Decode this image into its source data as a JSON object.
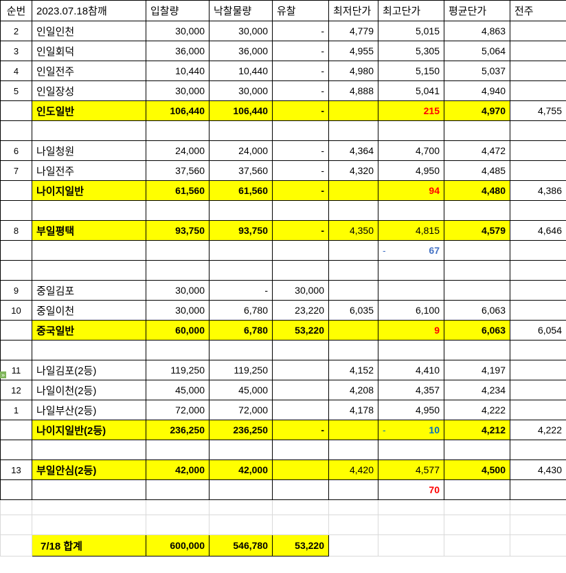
{
  "headers": [
    "순번",
    "2023.07.18참깨",
    "입찰량",
    "낙찰물량",
    "유찰",
    "최저단가",
    "최고단가",
    "평균단가",
    "전주"
  ],
  "colors": {
    "highlight": "#ffff00",
    "red": "#ff0000",
    "blue_dark": "#4472c4",
    "blue": "#0070c0"
  },
  "rows": [
    {
      "kind": "normal",
      "cells": [
        "2",
        "인일인천",
        "30,000",
        "30,000",
        "-",
        "4,779",
        "5,015",
        "4,863",
        ""
      ]
    },
    {
      "kind": "normal",
      "cells": [
        "3",
        "인일회덕",
        "36,000",
        "36,000",
        "-",
        "4,955",
        "5,305",
        "5,064",
        ""
      ]
    },
    {
      "kind": "normal",
      "cells": [
        "4",
        "인일전주",
        "10,440",
        "10,440",
        "-",
        "4,980",
        "5,150",
        "5,037",
        ""
      ]
    },
    {
      "kind": "normal",
      "cells": [
        "5",
        "인일장성",
        "30,000",
        "30,000",
        "-",
        "4,888",
        "5,041",
        "4,940",
        ""
      ]
    },
    {
      "kind": "sub",
      "cells": [
        "",
        "인도일반",
        "106,440",
        "106,440",
        "-",
        "",
        {
          "t": "215",
          "color": "#ff0000",
          "bold": true
        },
        "4,970",
        "4,755"
      ]
    },
    {
      "kind": "blank",
      "cells": [
        "",
        "",
        "",
        "",
        "",
        "",
        "",
        "",
        ""
      ]
    },
    {
      "kind": "normal",
      "cells": [
        "6",
        "나일청원",
        "24,000",
        "24,000",
        "-",
        "4,364",
        "4,700",
        "4,472",
        ""
      ]
    },
    {
      "kind": "normal",
      "cells": [
        "7",
        "나일전주",
        "37,560",
        "37,560",
        "-",
        "4,320",
        "4,950",
        "4,485",
        ""
      ]
    },
    {
      "kind": "sub",
      "cells": [
        "",
        "나이지일반",
        "61,560",
        "61,560",
        "-",
        "",
        {
          "t": "94",
          "color": "#ff0000",
          "bold": true
        },
        "4,480",
        "4,386"
      ]
    },
    {
      "kind": "blank",
      "cells": [
        "",
        "",
        "",
        "",
        "",
        "",
        "",
        "",
        ""
      ]
    },
    {
      "kind": "sub",
      "cells": [
        "8",
        "부일평택",
        "93,750",
        "93,750",
        "-",
        "4,350",
        "4,815",
        "4,579",
        "4,646"
      ]
    },
    {
      "kind": "blank",
      "cells": [
        "",
        "",
        "",
        "",
        "",
        "",
        {
          "t": "67",
          "color": "#4472c4",
          "bold": true,
          "dash": "-"
        },
        "",
        ""
      ]
    },
    {
      "kind": "blank",
      "cells": [
        "",
        "",
        "",
        "",
        "",
        "",
        "",
        "",
        ""
      ]
    },
    {
      "kind": "normal",
      "cells": [
        "9",
        "중일김포",
        "30,000",
        "-",
        "30,000",
        "",
        "",
        "",
        ""
      ]
    },
    {
      "kind": "normal",
      "cells": [
        "10",
        "중일이천",
        "30,000",
        "6,780",
        "23,220",
        "6,035",
        "6,100",
        "6,063",
        ""
      ]
    },
    {
      "kind": "sub",
      "cells": [
        "",
        "중국일반",
        "60,000",
        "6,780",
        "53,220",
        "",
        {
          "t": "9",
          "color": "#ff0000",
          "bold": true
        },
        "6,063",
        "6,054"
      ]
    },
    {
      "kind": "blank",
      "cells": [
        "",
        "",
        "",
        "",
        "",
        "",
        "",
        "",
        ""
      ]
    },
    {
      "kind": "normal",
      "cells": [
        "11",
        "나일김포(2등)",
        "119,250",
        "119,250",
        "",
        "4,152",
        "4,410",
        "4,197",
        ""
      ]
    },
    {
      "kind": "normal",
      "cells": [
        "12",
        "나일이천(2등)",
        "45,000",
        "45,000",
        "",
        "4,208",
        "4,357",
        "4,234",
        ""
      ]
    },
    {
      "kind": "normal",
      "cells": [
        "1",
        "나일부산(2등)",
        "72,000",
        "72,000",
        "",
        "4,178",
        "4,950",
        "4,222",
        ""
      ]
    },
    {
      "kind": "sub",
      "cells": [
        "",
        "나이지일반(2등)",
        "236,250",
        "236,250",
        "-",
        "",
        {
          "t": "10",
          "color": "#0070c0",
          "bold": true,
          "dash": "-"
        },
        "4,212",
        "4,222"
      ]
    },
    {
      "kind": "blank",
      "cells": [
        "",
        "",
        "",
        "",
        "",
        "",
        "",
        "",
        ""
      ]
    },
    {
      "kind": "sub",
      "cells": [
        "13",
        "부일안심(2등)",
        "42,000",
        "42,000",
        "",
        "4,420",
        "4,577",
        "4,500",
        "4,430"
      ]
    },
    {
      "kind": "blank",
      "cells": [
        "",
        "",
        "",
        "",
        "",
        "",
        {
          "t": "70",
          "color": "#ff0000",
          "bold": true
        },
        "",
        ""
      ]
    },
    {
      "kind": "grid22",
      "cells": [
        "",
        "",
        "",
        "",
        "",
        "",
        "",
        "",
        ""
      ]
    },
    {
      "kind": "grid",
      "cells": [
        "",
        "",
        "",
        "",
        "",
        "",
        "",
        "",
        ""
      ]
    },
    {
      "kind": "total",
      "cells": [
        "",
        "7/18 합계",
        "600,000",
        "546,780",
        "53,220",
        "",
        "",
        "",
        ""
      ]
    }
  ],
  "marker_icon": "»"
}
